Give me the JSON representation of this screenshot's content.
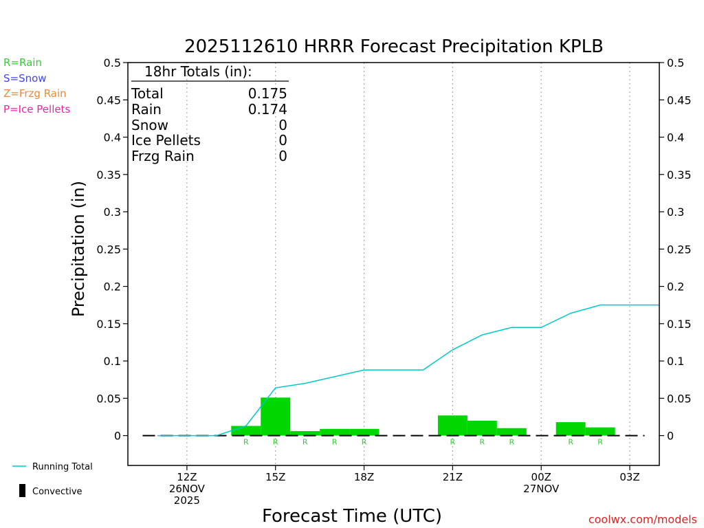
{
  "chart_data": {
    "type": "bar",
    "title": "2025112610 HRRR Forecast Precipitation KPLB",
    "xlabel": "Forecast Time (UTC)",
    "ylabel": "Precipitation (in)",
    "ylim": [
      -0.04,
      0.5
    ],
    "y_ticks": [
      0,
      0.05,
      0.1,
      0.15,
      0.2,
      0.25,
      0.3,
      0.35,
      0.4,
      0.45,
      0.5
    ],
    "y_tick_labels": [
      "0",
      "0.05",
      "0.1",
      "0.15",
      "0.2",
      "0.25",
      "0.3",
      "0.35",
      "0.4",
      "0.45",
      "0.5"
    ],
    "xlim": [
      10,
      28
    ],
    "x_ticks": [
      {
        "hour": 12,
        "lines": [
          "12Z",
          "26NOV",
          "2025"
        ]
      },
      {
        "hour": 15,
        "lines": [
          "15Z"
        ]
      },
      {
        "hour": 18,
        "lines": [
          "18Z"
        ]
      },
      {
        "hour": 21,
        "lines": [
          "21Z"
        ]
      },
      {
        "hour": 24,
        "lines": [
          "00Z",
          "27NOV"
        ]
      },
      {
        "hour": 27,
        "lines": [
          "03Z"
        ]
      }
    ],
    "x_unit": "hours since 2025-11-26 00Z",
    "grid": "vertical-dotted",
    "legend_top": [
      {
        "label": "R=Rain",
        "color": "#33cc33"
      },
      {
        "label": "S=Snow",
        "color": "#4444ee"
      },
      {
        "label": "Z=Frzg Rain",
        "color": "#ee8833"
      },
      {
        "label": "P=Ice Pellets",
        "color": "#ee22aa"
      }
    ],
    "legend_bottom": [
      {
        "label": "Running Total",
        "color": "#00c8c8",
        "kind": "line"
      },
      {
        "label": "Convective",
        "color": "#000000",
        "kind": "bar"
      }
    ],
    "totals_box": {
      "header": "18hr Totals (in):",
      "rows": [
        {
          "name": "Total",
          "value": "0.175"
        },
        {
          "name": "Rain",
          "value": "0.174"
        },
        {
          "name": "Snow",
          "value": "0"
        },
        {
          "name": "Ice Pellets",
          "value": "0"
        },
        {
          "name": "Frzg Rain",
          "value": "0"
        }
      ]
    },
    "series": [
      {
        "name": "Hourly Precipitation",
        "color": "#00d600",
        "hours": [
          11,
          12,
          13,
          14,
          15,
          16,
          17,
          18,
          19,
          20,
          21,
          22,
          23,
          24,
          25,
          26,
          27
        ],
        "values": [
          0,
          0,
          0,
          0.013,
          0.051,
          0.006,
          0.009,
          0.009,
          0,
          0,
          0.027,
          0.02,
          0.01,
          0,
          0.018,
          0.011,
          0
        ],
        "ptype": [
          "",
          "",
          "",
          "R",
          "R",
          "R",
          "R",
          "R",
          "",
          "",
          "R",
          "R",
          "R",
          "",
          "R",
          "R",
          ""
        ]
      },
      {
        "name": "Running Total",
        "color": "#00c8c8",
        "hours": [
          11,
          12,
          13,
          14,
          15,
          16,
          17,
          18,
          19,
          20,
          21,
          22,
          23,
          24,
          25,
          26,
          27,
          28
        ],
        "values": [
          0,
          0,
          0,
          0.013,
          0.064,
          0.07,
          0.079,
          0.088,
          0.088,
          0.088,
          0.115,
          0.135,
          0.145,
          0.145,
          0.164,
          0.175,
          0.175,
          0.175
        ]
      }
    ],
    "credit": "coolwx.com/models"
  }
}
